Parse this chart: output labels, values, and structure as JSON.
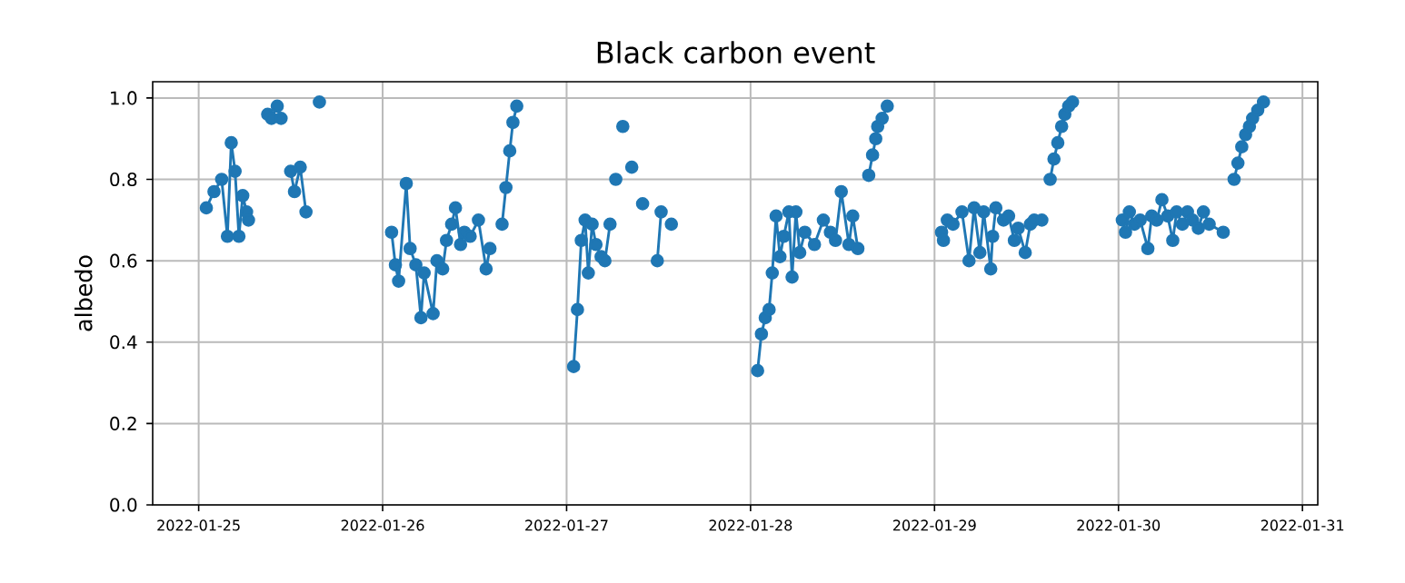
{
  "chart_data": {
    "type": "line",
    "title": "Black carbon event",
    "ylabel": "albedo",
    "xlim": [
      "2022-01-24T18:00",
      "2022-01-31T02:00"
    ],
    "xticks": [
      "2022-01-25",
      "2022-01-26",
      "2022-01-27",
      "2022-01-28",
      "2022-01-29",
      "2022-01-30",
      "2022-01-31"
    ],
    "ylim": [
      0,
      1.04
    ],
    "yticks": [
      {
        "value": 0,
        "label": "0.0"
      },
      0.2,
      0.4,
      0.6,
      0.8,
      {
        "value": 1,
        "label": "1.0"
      }
    ],
    "grid": true,
    "marker": "circle",
    "line_style": "solid",
    "series": [
      {
        "color": "#1f77b4",
        "x": [
          "2022-01-25T01:00",
          "2022-01-25T02:00",
          "2022-01-25T03:00",
          "2022-01-25T03:45",
          "2022-01-25T04:15",
          "2022-01-25T04:45",
          "2022-01-25T05:15",
          "2022-01-25T05:45",
          "2022-01-25T06:15",
          "2022-01-25T06:30",
          null,
          "2022-01-25T09:00",
          "2022-01-25T09:30",
          "2022-01-25T10:15",
          "2022-01-25T10:45",
          null,
          "2022-01-25T12:00",
          "2022-01-25T12:30",
          "2022-01-25T13:15",
          "2022-01-25T14:00",
          null,
          "2022-01-25T15:45",
          null,
          "2022-01-26T01:10",
          "2022-01-26T01:40",
          "2022-01-26T02:05",
          "2022-01-26T03:05",
          "2022-01-26T03:35",
          "2022-01-26T04:20",
          "2022-01-26T05:00",
          "2022-01-26T05:25",
          "2022-01-26T06:35",
          "2022-01-26T07:05",
          "2022-01-26T07:50",
          "2022-01-26T08:20",
          "2022-01-26T09:00",
          "2022-01-26T09:30",
          "2022-01-26T10:10",
          "2022-01-26T10:40",
          "2022-01-26T11:25",
          "2022-01-26T12:30",
          "2022-01-26T13:30",
          "2022-01-26T14:00",
          null,
          "2022-01-26T15:35",
          "2022-01-26T16:05",
          "2022-01-26T16:35",
          "2022-01-26T17:00",
          "2022-01-26T17:30",
          null,
          "2022-01-27T00:55",
          "2022-01-27T01:25",
          "2022-01-27T01:55",
          "2022-01-27T02:25",
          "2022-01-27T02:50",
          "2022-01-27T03:20",
          "2022-01-27T03:50",
          "2022-01-27T04:30",
          "2022-01-27T05:00",
          "2022-01-27T05:40",
          null,
          "2022-01-27T06:25",
          null,
          "2022-01-27T07:20",
          null,
          "2022-01-27T08:30",
          null,
          "2022-01-27T09:55",
          null,
          "2022-01-27T11:50",
          "2022-01-27T12:20",
          null,
          "2022-01-27T13:40",
          null,
          "2022-01-28T00:55",
          "2022-01-28T01:25",
          "2022-01-28T01:55",
          "2022-01-28T02:25",
          "2022-01-28T02:50",
          "2022-01-28T03:20",
          "2022-01-28T03:50",
          "2022-01-28T04:20",
          "2022-01-28T05:00",
          "2022-01-28T05:25",
          "2022-01-28T05:55",
          "2022-01-28T06:25",
          "2022-01-28T07:05",
          "2022-01-28T08:20",
          "2022-01-28T09:30",
          "2022-01-28T10:25",
          "2022-01-28T11:05",
          "2022-01-28T11:50",
          "2022-01-28T12:50",
          "2022-01-28T13:20",
          "2022-01-28T14:00",
          null,
          "2022-01-28T15:25",
          "2022-01-28T15:55",
          "2022-01-28T16:20",
          "2022-01-28T16:35",
          "2022-01-28T17:10",
          "2022-01-28T17:50",
          null,
          "2022-01-29T00:55",
          "2022-01-29T01:10",
          "2022-01-29T01:40",
          "2022-01-29T02:25",
          "2022-01-29T03:35",
          "2022-01-29T04:30",
          "2022-01-29T05:10",
          "2022-01-29T05:55",
          "2022-01-29T06:25",
          "2022-01-29T07:20",
          "2022-01-29T07:35",
          "2022-01-29T08:00",
          "2022-01-29T09:00",
          "2022-01-29T09:40",
          "2022-01-29T10:25",
          "2022-01-29T10:55",
          "2022-01-29T11:50",
          "2022-01-29T12:30",
          "2022-01-29T13:00",
          "2022-01-29T14:00",
          null,
          "2022-01-29T15:05",
          "2022-01-29T15:35",
          "2022-01-29T16:05",
          "2022-01-29T16:35",
          "2022-01-29T17:00",
          "2022-01-29T17:30",
          "2022-01-29T18:00",
          null,
          "2022-01-30T00:30",
          "2022-01-30T00:55",
          "2022-01-30T01:25",
          "2022-01-30T02:05",
          "2022-01-30T02:50",
          "2022-01-30T03:50",
          "2022-01-30T04:20",
          "2022-01-30T05:00",
          "2022-01-30T05:40",
          "2022-01-30T06:25",
          "2022-01-30T07:05",
          "2022-01-30T07:35",
          "2022-01-30T08:20",
          "2022-01-30T09:00",
          "2022-01-30T09:40",
          "2022-01-30T10:25",
          "2022-01-30T11:05",
          "2022-01-30T11:50",
          "2022-01-30T13:40",
          null,
          "2022-01-30T15:05",
          "2022-01-30T15:35",
          "2022-01-30T16:05",
          "2022-01-30T16:35",
          "2022-01-30T17:05",
          "2022-01-30T17:30",
          "2022-01-30T18:10",
          "2022-01-30T18:55"
        ],
        "values": [
          0.73,
          0.77,
          0.8,
          0.66,
          0.89,
          0.82,
          0.66,
          0.76,
          0.72,
          0.7,
          null,
          0.96,
          0.95,
          0.98,
          0.95,
          null,
          0.82,
          0.77,
          0.83,
          0.72,
          null,
          0.99,
          null,
          0.67,
          0.59,
          0.55,
          0.79,
          0.63,
          0.59,
          0.46,
          0.57,
          0.47,
          0.6,
          0.58,
          0.65,
          0.69,
          0.73,
          0.64,
          0.67,
          0.66,
          0.7,
          0.58,
          0.63,
          null,
          0.69,
          0.78,
          0.87,
          0.94,
          0.98,
          null,
          0.34,
          0.48,
          0.65,
          0.7,
          0.57,
          0.69,
          0.64,
          0.61,
          0.6,
          0.69,
          null,
          0.8,
          null,
          0.93,
          null,
          0.83,
          null,
          0.74,
          null,
          0.6,
          0.72,
          null,
          0.69,
          null,
          0.33,
          0.42,
          0.46,
          0.48,
          0.57,
          0.71,
          0.61,
          0.66,
          0.72,
          0.56,
          0.72,
          0.62,
          0.67,
          0.64,
          0.7,
          0.67,
          0.65,
          0.77,
          0.64,
          0.71,
          0.63,
          null,
          0.81,
          0.86,
          0.9,
          0.93,
          0.95,
          0.98,
          null,
          0.67,
          0.65,
          0.7,
          0.69,
          0.72,
          0.6,
          0.73,
          0.62,
          0.72,
          0.58,
          0.66,
          0.73,
          0.7,
          0.71,
          0.65,
          0.68,
          0.62,
          0.69,
          0.7,
          0.7,
          null,
          0.8,
          0.85,
          0.89,
          0.93,
          0.96,
          0.98,
          0.99,
          null,
          0.7,
          0.67,
          0.72,
          0.69,
          0.7,
          0.63,
          0.71,
          0.7,
          0.75,
          0.71,
          0.65,
          0.72,
          0.69,
          0.72,
          0.7,
          0.68,
          0.72,
          0.69,
          0.67,
          null,
          0.8,
          0.84,
          0.88,
          0.91,
          0.93,
          0.95,
          0.97,
          0.99
        ]
      }
    ]
  }
}
